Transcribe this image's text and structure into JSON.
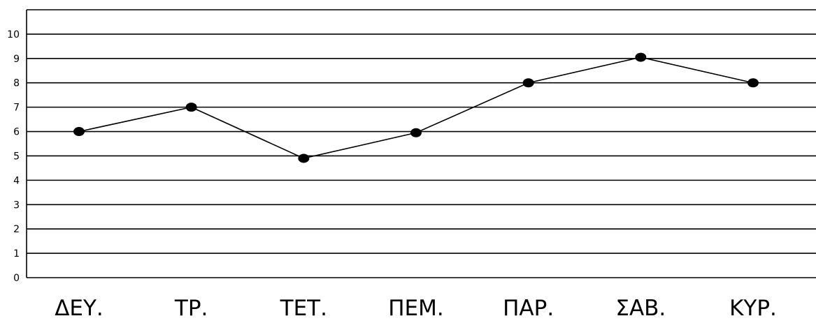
{
  "chart_data": {
    "type": "line",
    "title": "",
    "xlabel": "",
    "ylabel": "",
    "categories": [
      "ΔΕΥ.",
      "ΤΡ.",
      "ΤΕΤ.",
      "ΠΕΜ.",
      "ΠΑΡ.",
      "ΣΑΒ.",
      "ΚΥΡ."
    ],
    "series": [
      {
        "values": [
          6,
          7,
          4.9,
          5.95,
          8,
          9.05,
          8
        ]
      }
    ],
    "ylim": [
      0,
      11
    ],
    "yticks": [
      "0",
      "1",
      "2",
      "3",
      "4",
      "5",
      "6",
      "7",
      "8",
      "9",
      "10"
    ],
    "grid": "horizontal",
    "legend": "none",
    "colors": {
      "line": "#000000",
      "marker": "#000000",
      "grid": "#000000"
    }
  }
}
